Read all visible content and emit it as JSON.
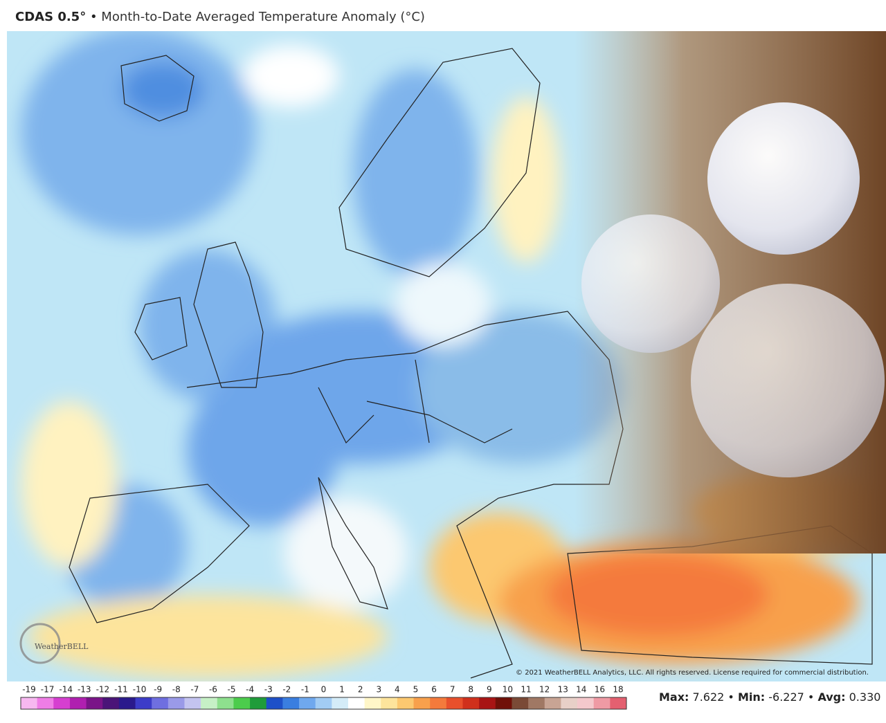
{
  "header": {
    "model": "CDAS 0.5°",
    "separator": "•",
    "title": "Month-to-Date Averaged Temperature Anomaly (°C)"
  },
  "map": {
    "logo": "WeatherBELL",
    "copyright": "© 2021 WeatherBELL Analytics, LLC. All rights reserved. License required for commercial distribution."
  },
  "colorbar": {
    "labels": [
      -19,
      -17,
      -14,
      -13,
      -12,
      -11,
      -10,
      -9,
      -8,
      -7,
      -6,
      -5,
      -4,
      -3,
      -2,
      -1,
      0,
      1,
      2,
      3,
      4,
      5,
      6,
      7,
      8,
      9,
      10,
      11,
      12,
      13,
      14,
      16,
      18
    ],
    "colors": [
      "#f7b8f0",
      "#ef7de6",
      "#d63fd0",
      "#b01fb0",
      "#7a1488",
      "#4a1478",
      "#2a1a8c",
      "#3c3cc8",
      "#6f6fe0",
      "#9a9ae8",
      "#c4c4f0",
      "#c6f0c6",
      "#8ee08e",
      "#4ccc4c",
      "#1f9c3a",
      "#1e50c8",
      "#3a7ee0",
      "#6fa8ee",
      "#a2ccf4",
      "#d4ecf8",
      "#ffffff",
      "#fff6c8",
      "#fde49c",
      "#fcc870",
      "#f8a04c",
      "#f47a3c",
      "#e8502c",
      "#d0301c",
      "#a81414",
      "#701008",
      "#7a4a36",
      "#a07864",
      "#c8a494",
      "#e8d0c8",
      "#f4c8cc",
      "#ef9aa4",
      "#e46070"
    ]
  },
  "stats": [
    {
      "label": "Max:",
      "value": "7.622"
    },
    {
      "label": "Min:",
      "value": "-6.227"
    },
    {
      "label": "Avg:",
      "value": "0.330"
    }
  ]
}
